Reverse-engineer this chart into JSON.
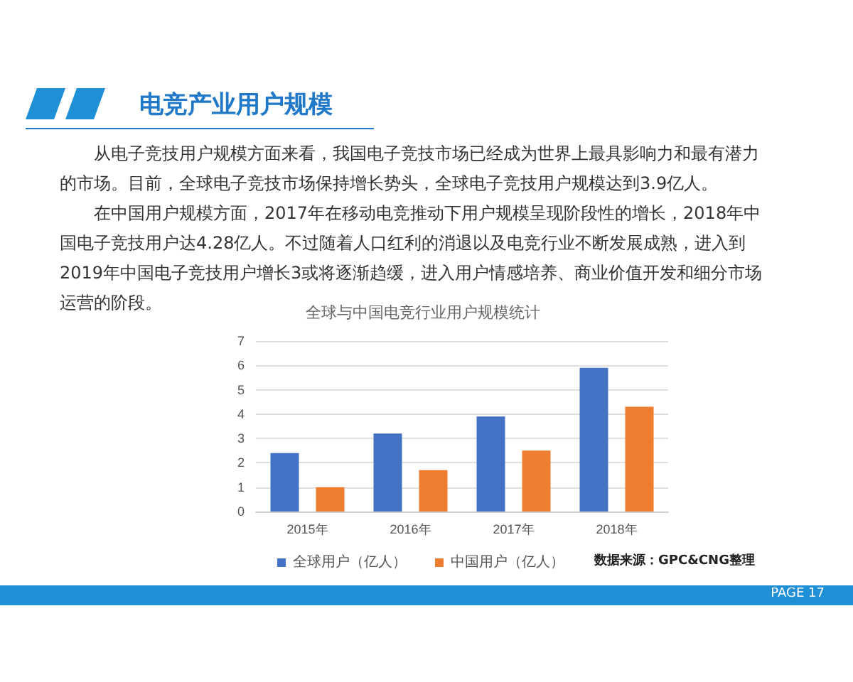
{
  "chart_data": {
    "type": "bar",
    "title": "电竞产业用户规模",
    "subtitle": "全球与中国电竞行业用户规模统计",
    "categories": [
      "2015年",
      "2016年",
      "2017年",
      "2018年"
    ],
    "series": [
      {
        "name": "全球用户（亿人）",
        "color": "#4472c4",
        "values": [
          2.4,
          3.2,
          3.9,
          5.9
        ]
      },
      {
        "name": "中国用户（亿人）",
        "color": "#ed7d31",
        "values": [
          1.0,
          1.7,
          2.5,
          4.3
        ]
      }
    ],
    "ylim": [
      0,
      7
    ],
    "yticks": [
      0,
      1,
      2,
      3,
      4,
      5,
      6,
      7
    ],
    "grid": "y",
    "legend": "bottom",
    "annotations": [
      "从电子竞技用户规模方面来看，我国电子竞技市场已经成为世界上最具影响力和最有潜力的市场。目前，全球电子竞技市场保持增长势头，全球电子竞技用户规模达到3.9亿人。",
      "在中国用户规模方面，2017年在移动电竞推动下用户规模呈现阶段性的增长，2018年中国电子竞技用户达4.28亿人。不过随着人口红利的消退以及电竞行业不断发展成熟，进入到2019年中国电子竞技用户增长3或将逐渐趋缓，进入用户情感培养、商业价值开发和细分市场运营的阶段。",
      "数据来源：GPC&CNG整理",
      "PAGE 17"
    ]
  }
}
